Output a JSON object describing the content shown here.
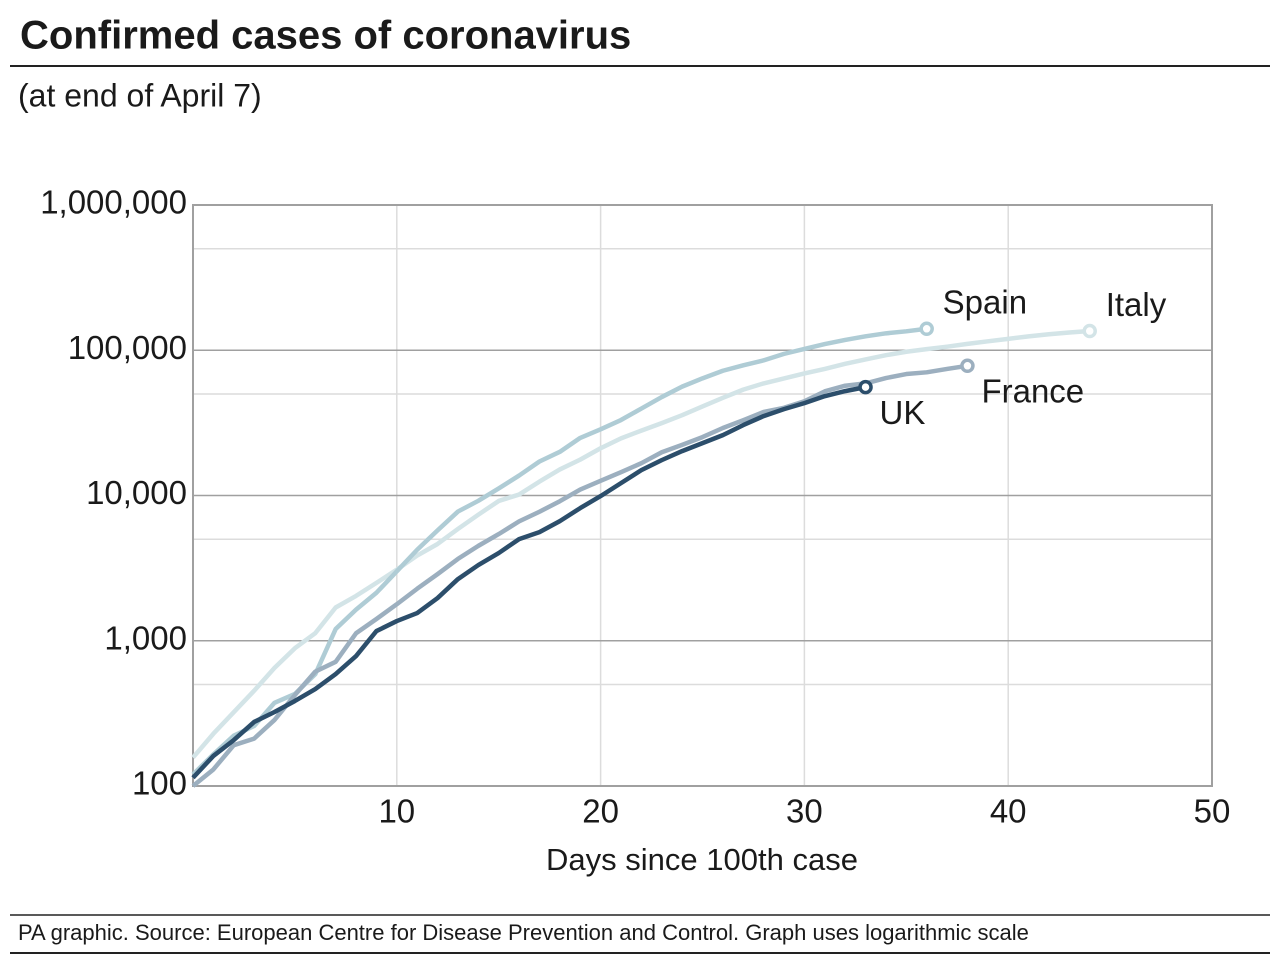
{
  "chart_data": {
    "type": "line",
    "title": "Confirmed cases of coronavirus",
    "subtitle": "(at end of April 7)",
    "x_label": "Days since 100th case",
    "source": "PA graphic. Source: European Centre for Disease Prevention and Control. Graph uses logarithmic scale",
    "log_y": true,
    "grid": true,
    "xlim": [
      0,
      50
    ],
    "xticks": [
      10,
      20,
      30,
      40,
      50
    ],
    "ylim": [
      100,
      1000000
    ],
    "yticks": [
      100,
      {
        "value": 1000,
        "label": "1,000"
      },
      {
        "value": 10000,
        "label": "10,000"
      },
      {
        "value": 100000,
        "label": "100,000"
      },
      {
        "value": 1000000,
        "label": "1,000,000"
      }
    ],
    "minor_yticks": [
      500,
      5000,
      50000,
      500000
    ],
    "x": [
      0,
      1,
      2,
      3,
      4,
      5,
      6,
      7,
      8,
      9,
      10,
      11,
      12,
      13,
      14,
      15,
      16,
      17,
      18,
      19,
      20,
      21,
      22,
      23,
      24,
      25,
      26,
      27,
      28,
      29,
      30,
      31,
      32,
      33,
      34,
      35,
      36,
      37,
      38,
      39,
      40,
      41,
      42,
      43,
      44
    ],
    "series": [
      {
        "name": "Italy",
        "color": "#d3e4e7",
        "label_pos": "above",
        "values": [
          157,
          229,
          322,
          453,
          650,
          888,
          1128,
          1694,
          2036,
          2502,
          3089,
          3858,
          4636,
          5883,
          7375,
          9172,
          10149,
          12462,
          15113,
          17660,
          21157,
          24747,
          27980,
          31506,
          35713,
          41035,
          47021,
          53578,
          59138,
          63927,
          69176,
          74386,
          80589,
          86498,
          92472,
          97689,
          101739,
          105792,
          110574,
          115242,
          119827,
          124632,
          128948,
          132547,
          135586
        ]
      },
      {
        "name": "Spain",
        "color": "#afccd5",
        "label_pos": "above",
        "values": [
          120,
          165,
          222,
          259,
          374,
          430,
          589,
          1204,
          1639,
          2140,
          3004,
          4231,
          5753,
          7753,
          9191,
          11178,
          13716,
          17147,
          19980,
          24926,
          28572,
          33089,
          39673,
          47610,
          56188,
          64059,
          72248,
          78797,
          85195,
          94417,
          102136,
          110238,
          117710,
          124736,
          130759,
          135032,
          140510,
          null,
          null,
          null,
          null,
          null,
          null,
          null,
          null
        ]
      },
      {
        "name": "France",
        "color": "#9cafbf",
        "label_pos": "below",
        "values": [
          100,
          130,
          191,
          212,
          285,
          423,
          613,
          716,
          1126,
          1412,
          1784,
          2281,
          2876,
          3661,
          4499,
          5423,
          6633,
          7730,
          9134,
          10995,
          12612,
          14459,
          16689,
          19856,
          22304,
          25233,
          29155,
          32964,
          37575,
          40174,
          44550,
          52128,
          56989,
          59105,
          64338,
          68605,
          70478,
          74390,
          78167,
          null,
          null,
          null,
          null,
          null,
          null
        ]
      },
      {
        "name": "UK",
        "color": "#2c4e6b",
        "label_pos": "below",
        "values": [
          114,
          161,
          207,
          276,
          323,
          385,
          465,
          590,
          785,
          1166,
          1366,
          1551,
          1967,
          2658,
          3319,
          4014,
          5010,
          5598,
          6664,
          8190,
          9906,
          12170,
          14950,
          17520,
          20210,
          22940,
          26050,
          30520,
          35200,
          39310,
          43240,
          48320,
          52320,
          55720,
          null,
          null,
          null,
          null,
          null,
          null,
          null,
          null,
          null,
          null,
          null
        ]
      }
    ]
  }
}
